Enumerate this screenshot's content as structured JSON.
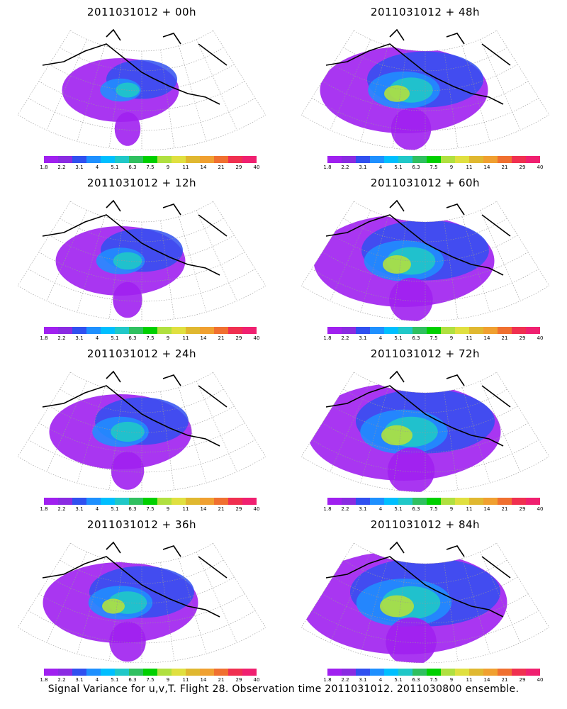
{
  "panels": [
    {
      "title": "2011031012 + 00h",
      "intensity": 0.25
    },
    {
      "title": "2011031012 + 48h",
      "intensity": 0.65
    },
    {
      "title": "2011031012 + 12h",
      "intensity": 0.35
    },
    {
      "title": "2011031012 + 60h",
      "intensity": 0.75
    },
    {
      "title": "2011031012 + 24h",
      "intensity": 0.45
    },
    {
      "title": "2011031012 + 72h",
      "intensity": 0.85
    },
    {
      "title": "2011031012 + 36h",
      "intensity": 0.55
    },
    {
      "title": "2011031012 + 84h",
      "intensity": 0.95
    }
  ],
  "colorbar": {
    "colors": [
      "#a020f0",
      "#8a2be2",
      "#3050f0",
      "#1e90ff",
      "#00bfff",
      "#20c8c8",
      "#30c060",
      "#00d000",
      "#b0e040",
      "#e0e040",
      "#e0b830",
      "#f0a030",
      "#f07030",
      "#f03050",
      "#f02070"
    ],
    "labels": [
      "1.8",
      "2.2",
      "3.1",
      "4",
      "5.1",
      "6.3",
      "7.5",
      "9",
      "11",
      "14",
      "21",
      "29",
      "40"
    ]
  },
  "footer": "Signal Variance for u,v,T. Flight 28. Observation time 2011031012. 2011030800 ensemble."
}
